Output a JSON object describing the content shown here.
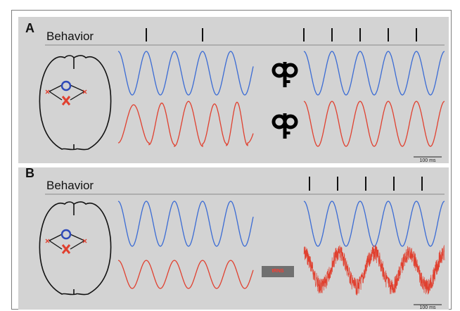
{
  "panels": [
    {
      "letter": "A",
      "behavior_label": "Behavior",
      "scale_label": "100 ms"
    },
    {
      "letter": "B",
      "behavior_label": "Behavior",
      "scale_label": "100 ms",
      "stim_label": "tRNS"
    }
  ],
  "colors": {
    "background": "#d3d3d3",
    "blue_wave": "#3a6bd4",
    "red_wave": "#e0402f",
    "stim_box": "#707070",
    "stim_text": "#ff3b30",
    "brain_outline": "#111111"
  },
  "icons": [
    "brain-outline-icon",
    "wind-up-key-icon"
  ]
}
